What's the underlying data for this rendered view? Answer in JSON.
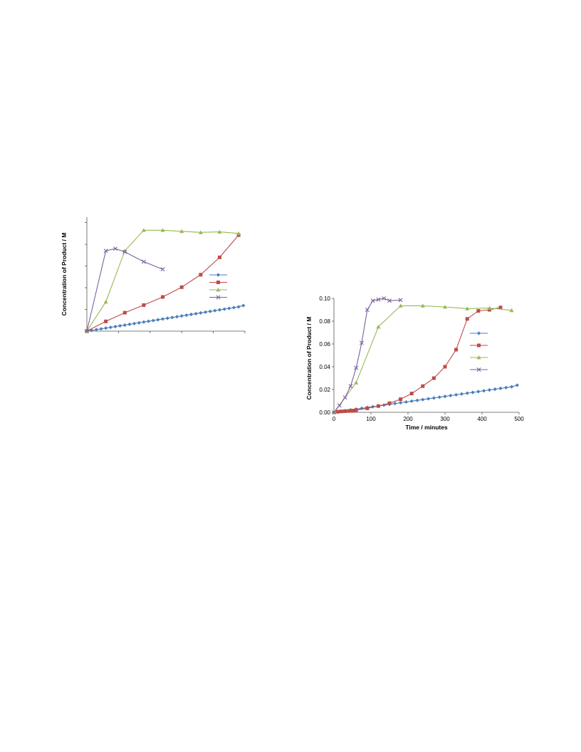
{
  "chart_data": [
    {
      "id": "chart-left",
      "type": "line",
      "title": "",
      "ylabel": "Concentration of Product / M",
      "xlabel": "",
      "xlim": [
        0,
        500
      ],
      "ylim": [
        0,
        0.105
      ],
      "xticks": [
        0,
        100,
        200,
        300,
        400,
        500
      ],
      "yticks": [
        0,
        0.02,
        0.04,
        0.06,
        0.08,
        0.1
      ],
      "show_tick_labels": false,
      "legend": "right",
      "series": [
        {
          "color": "#4a7ebb",
          "marker": "diamond",
          "x": [
            0,
            15,
            30,
            45,
            60,
            75,
            90,
            105,
            120,
            135,
            150,
            165,
            180,
            195,
            210,
            225,
            240,
            255,
            270,
            285,
            300,
            315,
            330,
            345,
            360,
            375,
            390,
            405,
            420,
            435,
            450,
            465,
            480,
            495
          ],
          "y": [
            0,
            0.0007,
            0.0014,
            0.0021,
            0.0028,
            0.0035,
            0.0042,
            0.0049,
            0.0056,
            0.0063,
            0.007,
            0.0077,
            0.0084,
            0.0091,
            0.0098,
            0.0105,
            0.0112,
            0.0119,
            0.0126,
            0.0133,
            0.014,
            0.0147,
            0.0154,
            0.0161,
            0.0168,
            0.0175,
            0.0182,
            0.0189,
            0.0196,
            0.0203,
            0.021,
            0.0217,
            0.0224,
            0.0236
          ]
        },
        {
          "color": "#be4b48",
          "marker": "square",
          "x": [
            0,
            60,
            120,
            180,
            240,
            300,
            360,
            420,
            480
          ],
          "y": [
            0,
            0.009,
            0.017,
            0.024,
            0.0315,
            0.0405,
            0.052,
            0.068,
            0.0885
          ]
        },
        {
          "color": "#98b954",
          "marker": "triangle",
          "x": [
            0,
            60,
            120,
            180,
            240,
            300,
            360,
            420,
            480
          ],
          "y": [
            0,
            0.027,
            0.074,
            0.093,
            0.093,
            0.092,
            0.091,
            0.0915,
            0.09
          ]
        },
        {
          "color": "#7d60a0",
          "marker": "x",
          "x": [
            0,
            60,
            90,
            120,
            180,
            240
          ],
          "y": [
            0,
            0.074,
            0.076,
            0.073,
            0.064,
            0.057
          ]
        }
      ]
    },
    {
      "id": "chart-right",
      "type": "line",
      "title": "",
      "ylabel": "Concentration of Product / M",
      "xlabel": "Time / minutes",
      "xlim": [
        0,
        500
      ],
      "ylim": [
        0,
        0.1
      ],
      "xticks": [
        0,
        100,
        200,
        300,
        400,
        500
      ],
      "yticks": [
        0,
        0.02,
        0.04,
        0.06,
        0.08,
        0.1
      ],
      "xtick_labels": [
        "0",
        "100",
        "200",
        "300",
        "400",
        "500"
      ],
      "ytick_labels": [
        "0.00",
        "0.02",
        "0.04",
        "0.06",
        "0.08",
        "0.10"
      ],
      "show_tick_labels": true,
      "legend": "right",
      "series": [
        {
          "color": "#4a7ebb",
          "marker": "diamond",
          "x": [
            0,
            15,
            30,
            45,
            60,
            75,
            90,
            105,
            120,
            135,
            150,
            165,
            180,
            195,
            210,
            225,
            240,
            255,
            270,
            285,
            300,
            315,
            330,
            345,
            360,
            375,
            390,
            405,
            420,
            435,
            450,
            465,
            480,
            495
          ],
          "y": [
            0,
            0.0007,
            0.0014,
            0.0021,
            0.0028,
            0.0035,
            0.0042,
            0.0049,
            0.0056,
            0.0063,
            0.007,
            0.0077,
            0.0084,
            0.0091,
            0.0098,
            0.0105,
            0.0112,
            0.0119,
            0.0126,
            0.0133,
            0.014,
            0.0147,
            0.0154,
            0.0161,
            0.0168,
            0.0175,
            0.0182,
            0.0189,
            0.0196,
            0.0203,
            0.021,
            0.0217,
            0.0224,
            0.0238
          ]
        },
        {
          "color": "#be4b48",
          "marker": "square",
          "x": [
            10,
            20,
            30,
            40,
            45,
            50,
            55,
            60,
            90,
            120,
            150,
            180,
            210,
            240,
            270,
            300,
            330,
            360,
            390,
            420,
            450
          ],
          "y": [
            0.0005,
            0.0008,
            0.001,
            0.0012,
            0.0013,
            0.0014,
            0.0015,
            0.002,
            0.0035,
            0.0055,
            0.008,
            0.0115,
            0.0165,
            0.023,
            0.03,
            0.04,
            0.055,
            0.082,
            0.089,
            0.09,
            0.092
          ]
        },
        {
          "color": "#98b954",
          "marker": "triangle",
          "x": [
            0,
            60,
            120,
            180,
            240,
            300,
            360,
            420,
            480
          ],
          "y": [
            0,
            0.026,
            0.075,
            0.0935,
            0.0935,
            0.0925,
            0.091,
            0.0915,
            0.0895
          ]
        },
        {
          "color": "#7d60a0",
          "marker": "x",
          "x": [
            0,
            15,
            30,
            45,
            60,
            75,
            90,
            105,
            120,
            135,
            150,
            180
          ],
          "y": [
            0,
            0.006,
            0.013,
            0.023,
            0.039,
            0.061,
            0.09,
            0.098,
            0.099,
            0.1,
            0.098,
            0.0985
          ]
        }
      ]
    }
  ]
}
